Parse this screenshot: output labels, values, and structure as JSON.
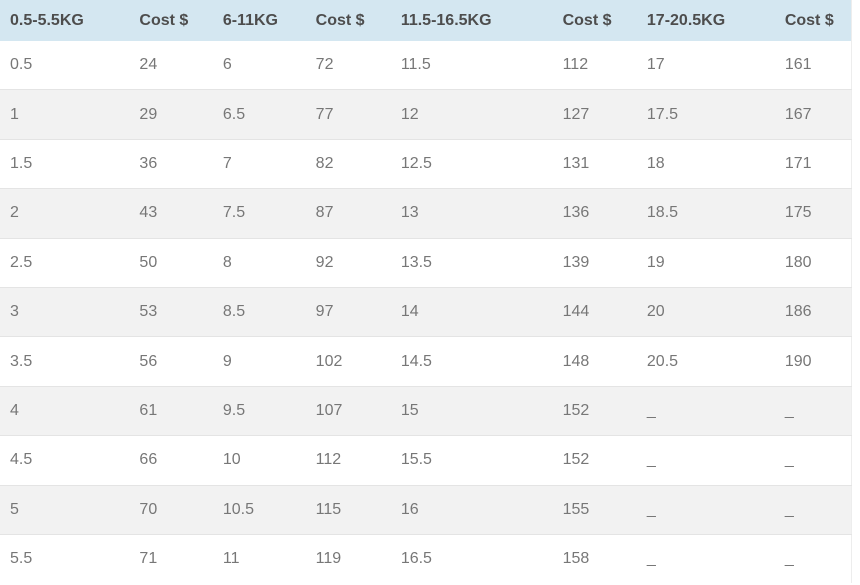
{
  "chart_data": {
    "type": "table",
    "columns": [
      "0.5-5.5KG",
      "Cost $",
      "6-11KG",
      "Cost $",
      "11.5-16.5KG",
      "Cost $",
      "17-20.5KG",
      "Cost $"
    ],
    "rows": [
      [
        "0.5",
        "24",
        "6",
        "72",
        "11.5",
        "112",
        "17",
        "161"
      ],
      [
        "1",
        "29",
        "6.5",
        "77",
        "12",
        "127",
        "17.5",
        "167"
      ],
      [
        "1.5",
        "36",
        "7",
        "82",
        "12.5",
        "131",
        "18",
        "171"
      ],
      [
        "2",
        "43",
        "7.5",
        "87",
        "13",
        "136",
        "18.5",
        "175"
      ],
      [
        "2.5",
        "50",
        "8",
        "92",
        "13.5",
        "139",
        "19",
        "180"
      ],
      [
        "3",
        "53",
        "8.5",
        "97",
        "14",
        "144",
        "20",
        "186"
      ],
      [
        "3.5",
        "56",
        "9",
        "102",
        "14.5",
        "148",
        "20.5",
        "190"
      ],
      [
        "4",
        "61",
        "9.5",
        "107",
        "15",
        "152",
        "_",
        "_"
      ],
      [
        "4.5",
        "66",
        "10",
        "112",
        "15.5",
        "152",
        "_",
        "_"
      ],
      [
        "5",
        "70",
        "10.5",
        "115",
        "16",
        "155",
        "_",
        "_"
      ],
      [
        "5.5",
        "71",
        "11",
        "119",
        "16.5",
        "158",
        "_",
        "_"
      ]
    ],
    "layout_hints": {
      "header_style": "light-blue band, bold dark-gray text",
      "row_striping": "every second data row shaded light gray",
      "missing_value_marker": "_"
    }
  },
  "colors": {
    "header_bg": "#d4e7f1",
    "header_text": "#4d4d4d",
    "cell_text": "#777777",
    "alt_row_bg": "#f2f2f2",
    "row_border": "#e4e4e4"
  }
}
